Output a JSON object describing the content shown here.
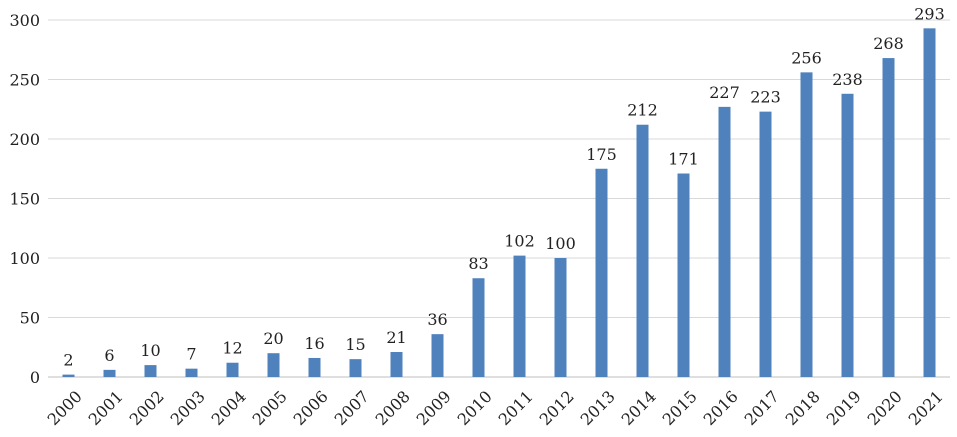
{
  "chart_data": {
    "type": "bar",
    "title": "",
    "xlabel": "",
    "ylabel": "",
    "categories": [
      "2000",
      "2001",
      "2002",
      "2003",
      "2004",
      "2005",
      "2006",
      "2007",
      "2008",
      "2009",
      "2010",
      "2011",
      "2012",
      "2013",
      "2014",
      "2015",
      "2016",
      "2017",
      "2018",
      "2019",
      "2020",
      "2021"
    ],
    "values": [
      2,
      6,
      10,
      7,
      12,
      20,
      16,
      15,
      21,
      36,
      83,
      102,
      100,
      175,
      212,
      171,
      227,
      223,
      256,
      238,
      268,
      293
    ],
    "ylim": [
      0,
      300
    ],
    "yticks": [
      "0",
      "50",
      "100",
      "150",
      "200",
      "250",
      "300"
    ],
    "grid": true,
    "legend": "none",
    "data_labels": true,
    "bar_color": "#4f81bd"
  }
}
